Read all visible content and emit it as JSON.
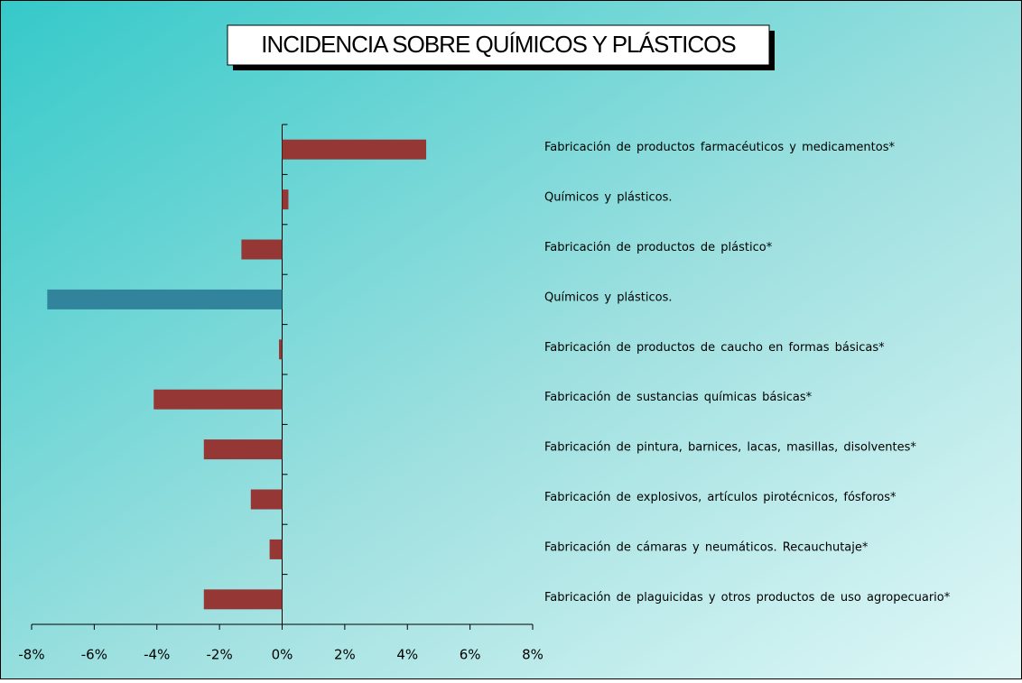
{
  "chart_data": {
    "type": "barh",
    "title": "INCIDENCIA SOBRE QUÍMICOS Y PLÁSTICOS",
    "categories": [
      "Fabricación de productos farmacéuticos y medicamentos*",
      "Químicos y plásticos.",
      "Fabricación de productos de plástico*",
      "Químicos y plásticos.",
      "Fabricación de productos de caucho en formas básicas*",
      "Fabricación de sustancias químicas básicas*",
      "Fabricación de pintura, barnices, lacas, masillas, disolventes*",
      "Fabricación de explosivos, artículos pirotécnicos, fósforos*",
      "Fabricación de cámaras y neumáticos. Recauchutaje*",
      "Fabricación de plaguicidas y otros productos de uso agropecuario*"
    ],
    "values": [
      4.6,
      0.2,
      -1.3,
      -7.5,
      -0.1,
      -4.1,
      -2.5,
      -1.0,
      -0.4,
      -2.5
    ],
    "colors": [
      "#953735",
      "#953735",
      "#953735",
      "#31849b",
      "#953735",
      "#953735",
      "#953735",
      "#953735",
      "#953735",
      "#953735"
    ],
    "xlim": [
      -8,
      8
    ],
    "xticks": [
      {
        "value": -8,
        "label": "-8%"
      },
      {
        "value": -6,
        "label": "-6%"
      },
      {
        "value": -4,
        "label": "-4%"
      },
      {
        "value": -2,
        "label": "-2%"
      },
      {
        "value": 0,
        "label": "0%"
      },
      {
        "value": 2,
        "label": "2%"
      },
      {
        "value": 4,
        "label": "4%"
      },
      {
        "value": 6,
        "label": "6%"
      },
      {
        "value": 8,
        "label": "8%"
      }
    ]
  }
}
